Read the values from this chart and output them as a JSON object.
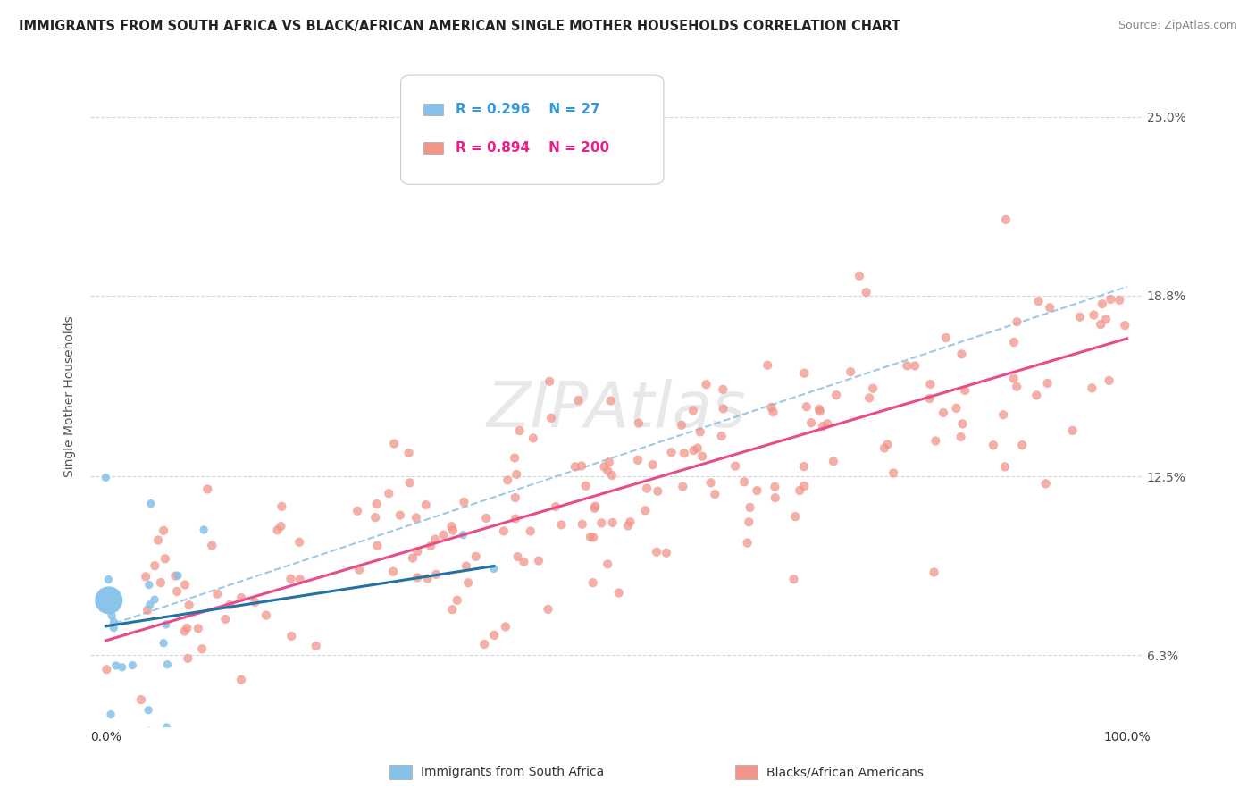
{
  "title": "IMMIGRANTS FROM SOUTH AFRICA VS BLACK/AFRICAN AMERICAN SINGLE MOTHER HOUSEHOLDS CORRELATION CHART",
  "source": "Source: ZipAtlas.com",
  "watermark": "ZIPAtlas",
  "ylabel": "Single Mother Households",
  "yticks": [
    0.063,
    0.125,
    0.188,
    0.25
  ],
  "ytick_labels": [
    "6.3%",
    "12.5%",
    "18.8%",
    "25.0%"
  ],
  "xlim": [
    -0.015,
    1.015
  ],
  "ylim": [
    0.038,
    0.268
  ],
  "legend": {
    "R1": "0.296",
    "N1": "27",
    "R2": "0.894",
    "N2": "200"
  },
  "color_blue": "#85c1e9",
  "color_pink": "#f1948a",
  "color_line_blue": "#2471a3",
  "color_line_pink": "#e74c8b",
  "color_dashed": "#85c1e9",
  "background_color": "#ffffff",
  "plot_bg": "#ffffff",
  "grid_color": "#d5d8dc",
  "title_fontsize": 10.5,
  "source_fontsize": 9,
  "watermark_fontsize": 52,
  "seed": 123,
  "blue_points_n": 27,
  "pink_points_n": 200,
  "blue_intercept": 0.073,
  "blue_slope": 0.055,
  "pink_intercept": 0.068,
  "pink_slope": 0.105,
  "dashed_intercept": 0.073,
  "dashed_slope": 0.118
}
